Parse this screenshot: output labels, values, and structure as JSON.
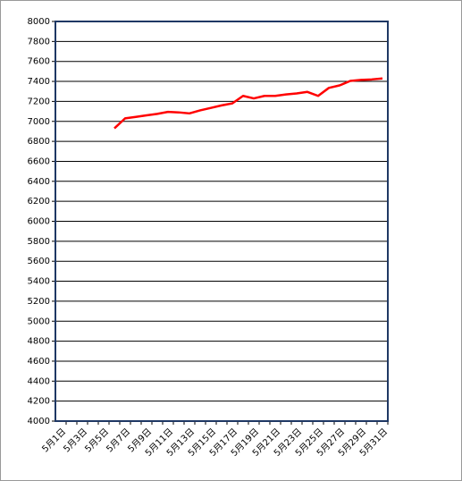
{
  "chart_data": {
    "type": "line",
    "categories": [
      "5月1日",
      null,
      "5月3日",
      null,
      "5月5日",
      null,
      "5月7日",
      null,
      "5月9日",
      null,
      "5月11日",
      null,
      "5月13日",
      null,
      "5月15日",
      null,
      "5月17日",
      null,
      "5月19日",
      null,
      "5月21日",
      null,
      "5月23日",
      null,
      "5月25日",
      null,
      "5月27日",
      null,
      "5月29日",
      null,
      "5月31日"
    ],
    "values": [
      null,
      null,
      null,
      null,
      null,
      6930,
      7030,
      7045,
      7060,
      7075,
      7095,
      7090,
      7080,
      7110,
      7135,
      7160,
      7180,
      7255,
      7230,
      7255,
      7255,
      7270,
      7280,
      7295,
      7255,
      7335,
      7360,
      7405,
      7415,
      7420,
      7430
    ],
    "color": "#ff0000",
    "ylim": [
      4000,
      8000
    ],
    "yticks": [
      4000,
      4200,
      4400,
      4600,
      4800,
      5000,
      5200,
      5400,
      5600,
      5800,
      6000,
      6200,
      6400,
      6600,
      6800,
      7000,
      7200,
      7400,
      7600,
      7800,
      8000
    ],
    "grid": true
  }
}
